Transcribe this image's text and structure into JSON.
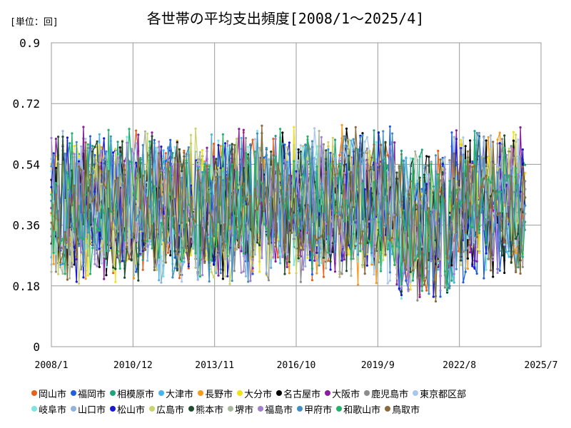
{
  "header": {
    "unit_label": "[単位：回]",
    "title": "各世帯の平均支出頻度[2008/1～2025/4]"
  },
  "chart_data": {
    "type": "line",
    "title": "各世帯の平均支出頻度[2008/1～2025/4]",
    "ylabel": "[単位：回]",
    "xlabel": "",
    "ylim": [
      0,
      0.9
    ],
    "y_ticks": [
      "0",
      "0.18",
      "0.36",
      "0.54",
      "0.72",
      "0.9"
    ],
    "x_ticks": [
      "2008/1",
      "2010/12",
      "2013/11",
      "2016/10",
      "2019/9",
      "2022/8",
      "2025/7"
    ],
    "x_range": [
      "2008/1",
      "2025/7"
    ],
    "grid": true,
    "legend_position": "bottom",
    "series": [
      {
        "name": "岡山市",
        "color": "#e8601c"
      },
      {
        "name": "福岡市",
        "color": "#1f5fe0"
      },
      {
        "name": "相模原市",
        "color": "#1fa37a"
      },
      {
        "name": "大津市",
        "color": "#4ab3e8"
      },
      {
        "name": "長野市",
        "color": "#f59a1b"
      },
      {
        "name": "大分市",
        "color": "#f0e21a"
      },
      {
        "name": "名古屋市",
        "color": "#000000"
      },
      {
        "name": "大阪市",
        "color": "#8a1da0"
      },
      {
        "name": "鹿児島市",
        "color": "#8c8c8c"
      },
      {
        "name": "東京都区部",
        "color": "#a9c8ea"
      },
      {
        "name": "岐阜市",
        "color": "#7ee6e0"
      },
      {
        "name": "山口市",
        "color": "#8fb4e0"
      },
      {
        "name": "松山市",
        "color": "#1a1ad0"
      },
      {
        "name": "広島市",
        "color": "#c9d46a"
      },
      {
        "name": "熊本市",
        "color": "#1e4d2b"
      },
      {
        "name": "堺市",
        "color": "#a8b89c"
      },
      {
        "name": "福島市",
        "color": "#a27fd0"
      },
      {
        "name": "甲府市",
        "color": "#3f8fc4"
      },
      {
        "name": "和歌山市",
        "color": "#22b36a"
      },
      {
        "name": "鳥取市",
        "color": "#8a6a3a"
      }
    ]
  }
}
